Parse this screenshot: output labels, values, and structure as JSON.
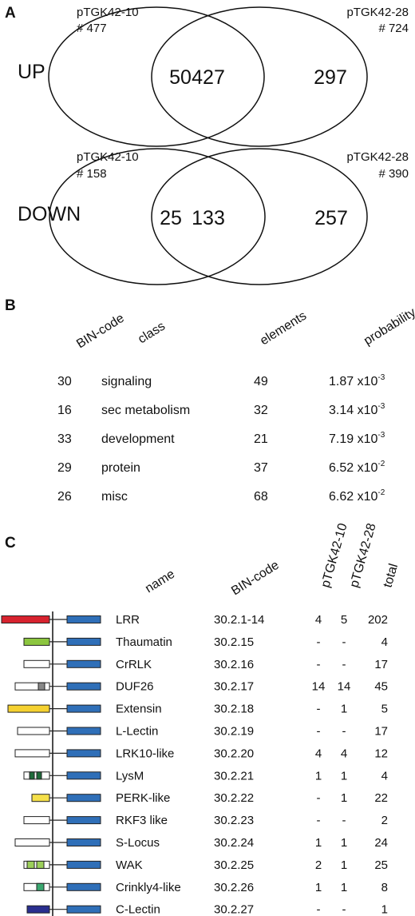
{
  "panel_a": {
    "letter": "A",
    "up": {
      "label": "UP",
      "left_name": "pTGK42-10",
      "left_count": "# 477",
      "right_name": "pTGK42-28",
      "right_count": "# 724",
      "only_left": "50",
      "overlap": "427",
      "only_right": "297"
    },
    "down": {
      "label": "DOWN",
      "left_name": "pTGK42-10",
      "left_count": "# 158",
      "right_name": "pTGK42-28",
      "right_count": "# 390",
      "only_left": "25",
      "overlap": "133",
      "only_right": "257"
    }
  },
  "panel_b": {
    "letter": "B",
    "headers": [
      "BIN-code",
      "class",
      "elements",
      "probability"
    ],
    "rows": [
      {
        "bin": "30",
        "class": "signaling",
        "elements": "49",
        "prob_base": "1.87 x10",
        "prob_exp": "-3"
      },
      {
        "bin": "16",
        "class": "sec metabolism",
        "elements": "32",
        "prob_base": "3.14 x10",
        "prob_exp": "-3"
      },
      {
        "bin": "33",
        "class": "development",
        "elements": "21",
        "prob_base": "7.19 x10",
        "prob_exp": "-3"
      },
      {
        "bin": "29",
        "class": "protein",
        "elements": "37",
        "prob_base": "6.52 x10",
        "prob_exp": "-2"
      },
      {
        "bin": "26",
        "class": "misc",
        "elements": "68",
        "prob_base": "6.62 x10",
        "prob_exp": "-2"
      }
    ]
  },
  "panel_c": {
    "letter": "C",
    "headers": [
      "name",
      "BIN-code",
      "pTGK42-10",
      "pTGK42-28",
      "total"
    ],
    "colors": {
      "kinase": "#2f6fb8",
      "lrr": "#d7232f",
      "thaumatin": "#8cc63f",
      "extensin": "#f5d130",
      "lysm": "#1f6b3a",
      "perk": "#f5e04a",
      "wak": "#9ccf5a",
      "crinkly": "#3aa870",
      "clectin": "#2a2f8f",
      "duf26": "#888888"
    },
    "rows": [
      {
        "name": "LRR",
        "bin": "30.2.1-14",
        "p10": "4",
        "p28": "5",
        "total": "202"
      },
      {
        "name": "Thaumatin",
        "bin": "30.2.15",
        "p10": "-",
        "p28": "-",
        "total": "4"
      },
      {
        "name": "CrRLK",
        "bin": "30.2.16",
        "p10": "-",
        "p28": "-",
        "total": "17"
      },
      {
        "name": "DUF26",
        "bin": "30.2.17",
        "p10": "14",
        "p28": "14",
        "total": "45"
      },
      {
        "name": "Extensin",
        "bin": "30.2.18",
        "p10": "-",
        "p28": "1",
        "total": "5"
      },
      {
        "name": "L-Lectin",
        "bin": "30.2.19",
        "p10": "-",
        "p28": "-",
        "total": "17"
      },
      {
        "name": "LRK10-like",
        "bin": "30.2.20",
        "p10": "4",
        "p28": "4",
        "total": "12"
      },
      {
        "name": "LysM",
        "bin": "30.2.21",
        "p10": "1",
        "p28": "1",
        "total": "4"
      },
      {
        "name": "PERK-like",
        "bin": "30.2.22",
        "p10": "-",
        "p28": "1",
        "total": "22"
      },
      {
        "name": "RKF3 like",
        "bin": "30.2.23",
        "p10": "-",
        "p28": "-",
        "total": "2"
      },
      {
        "name": "S-Locus",
        "bin": "30.2.24",
        "p10": "1",
        "p28": "1",
        "total": "24"
      },
      {
        "name": "WAK",
        "bin": "30.2.25",
        "p10": "2",
        "p28": "1",
        "total": "25"
      },
      {
        "name": "Crinkly4-like",
        "bin": "30.2.26",
        "p10": "1",
        "p28": "1",
        "total": "8"
      },
      {
        "name": "C-Lectin",
        "bin": "30.2.27",
        "p10": "-",
        "p28": "-",
        "total": "1"
      }
    ]
  }
}
